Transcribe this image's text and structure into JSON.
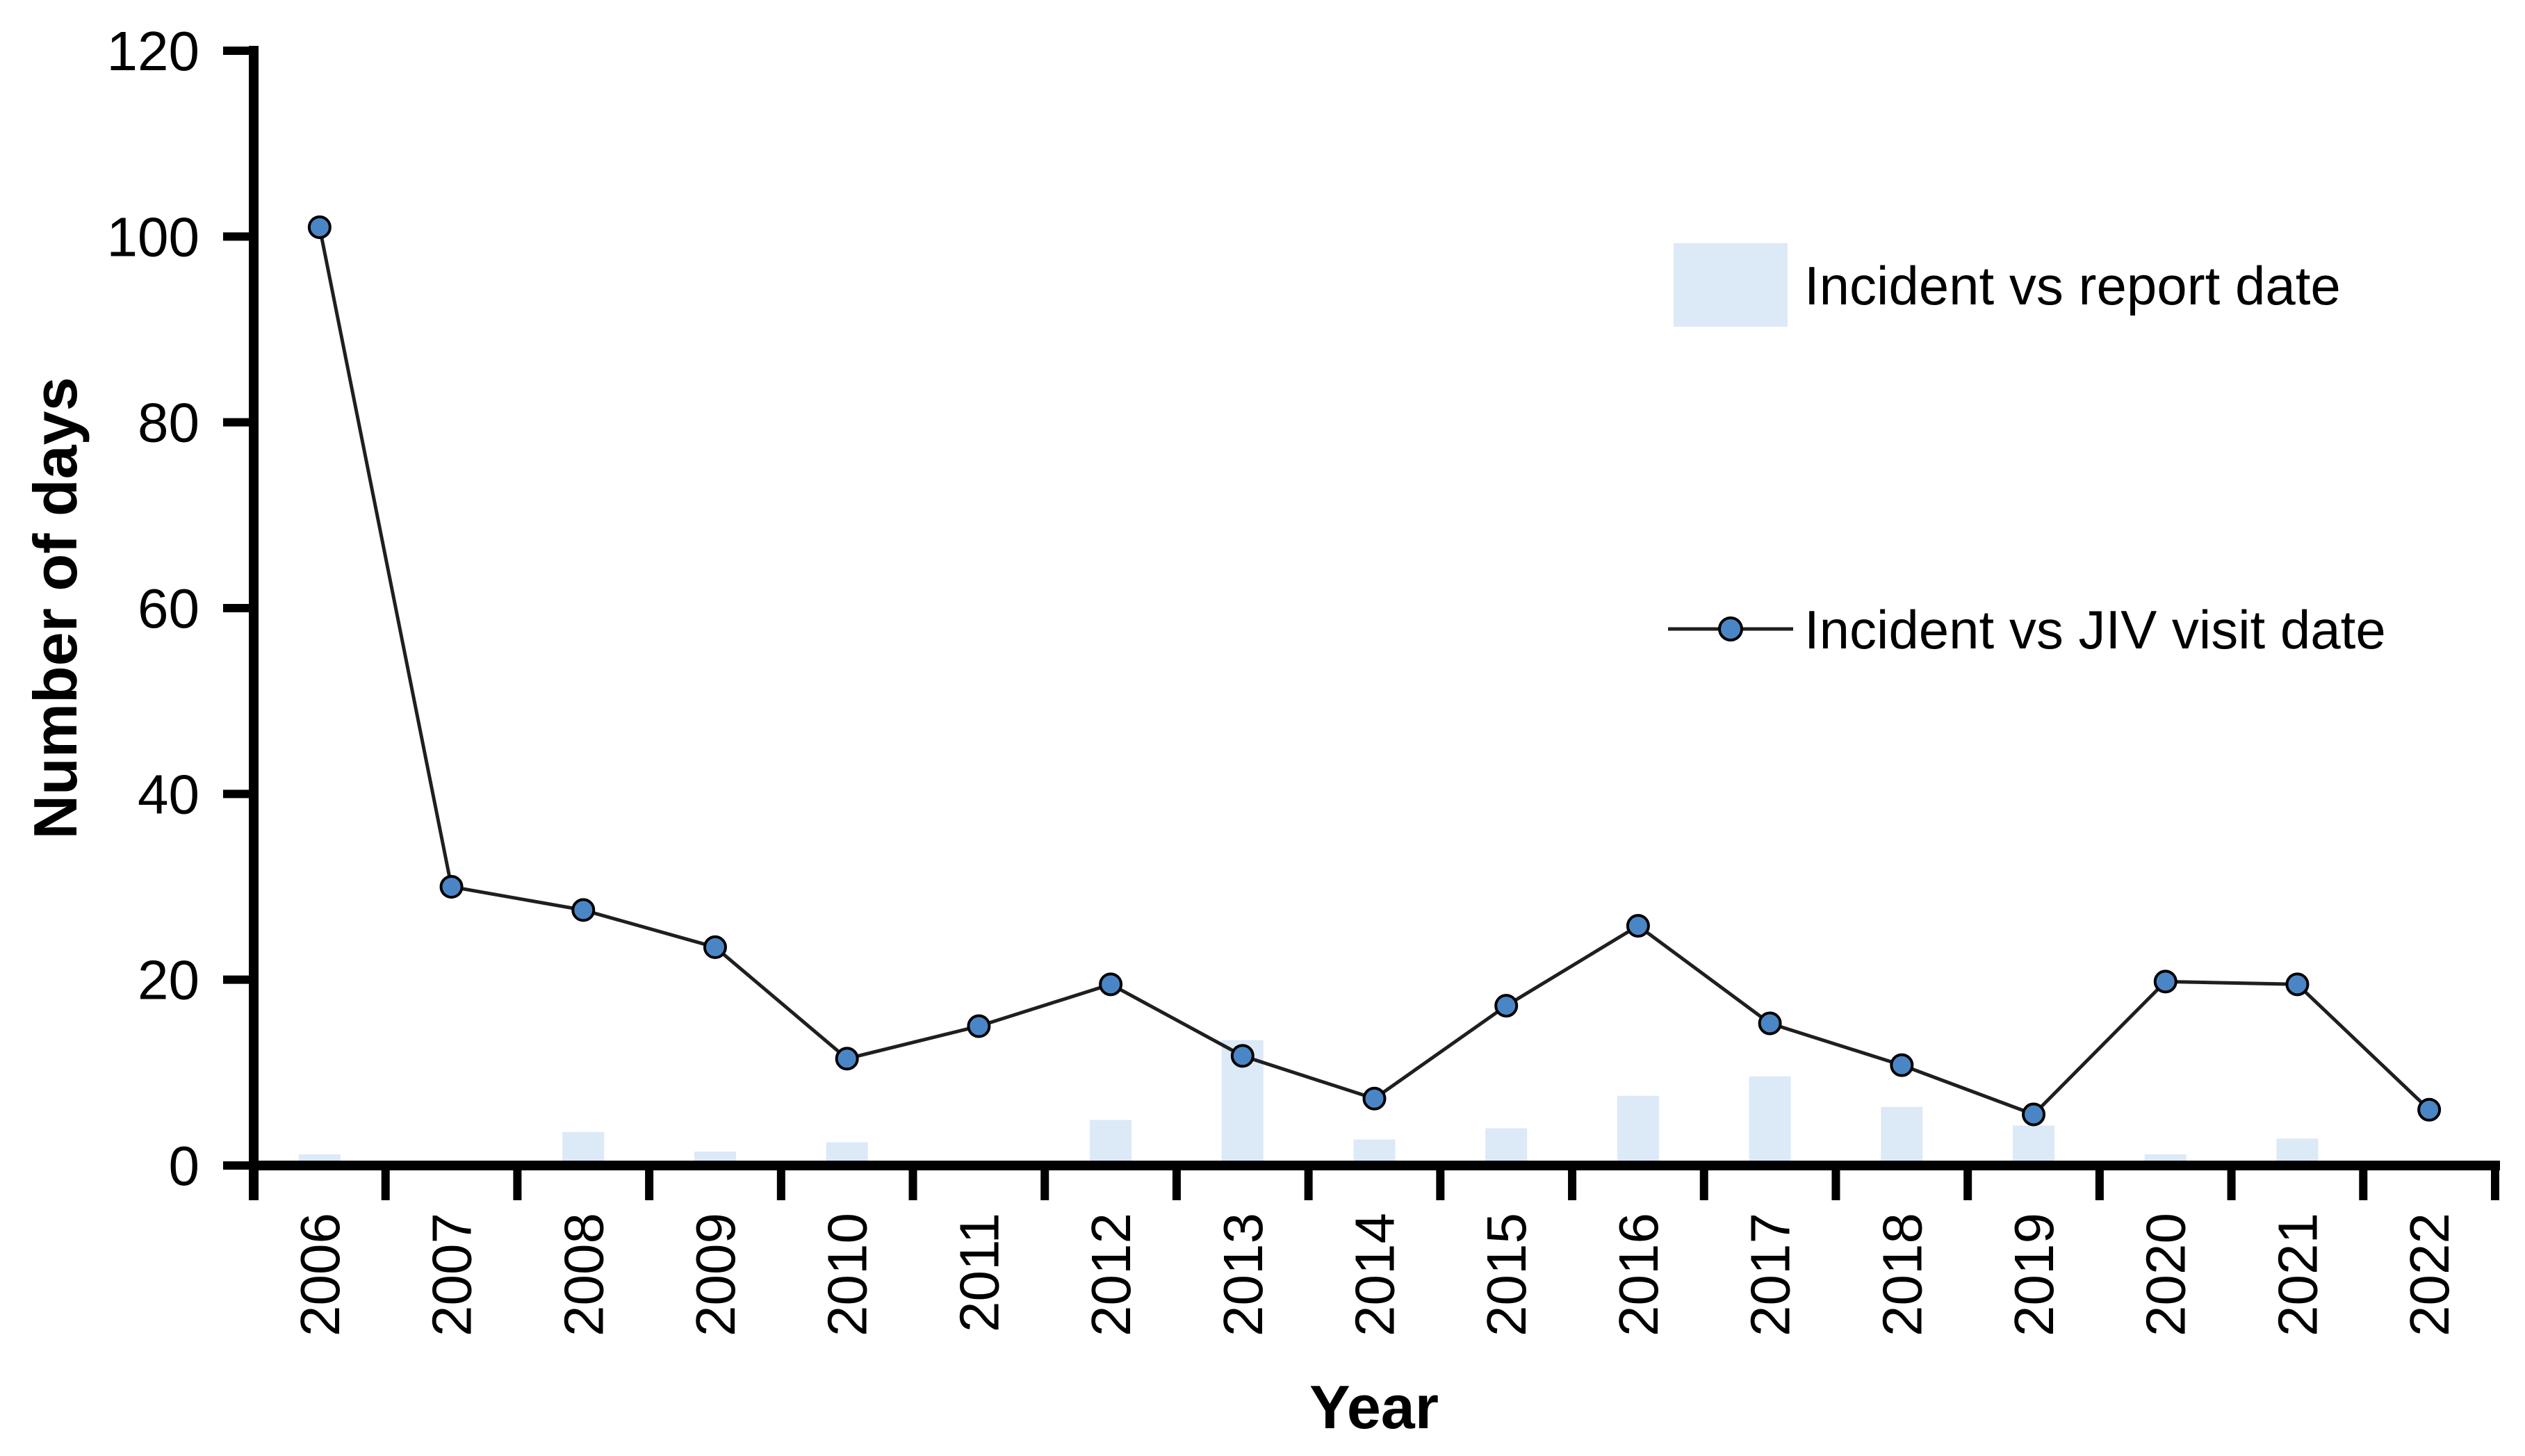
{
  "chart_data": {
    "type": "bar+line",
    "title": "",
    "xlabel": "Year",
    "ylabel": "Number of days",
    "categories": [
      "2006",
      "2007",
      "2008",
      "2009",
      "2010",
      "2011",
      "2012",
      "2013",
      "2014",
      "2015",
      "2016",
      "2017",
      "2018",
      "2019",
      "2020",
      "2021",
      "2022"
    ],
    "series": [
      {
        "name": "Incident vs report date",
        "type": "bar",
        "color": "#dce9f7",
        "values": [
          1.2,
          0.4,
          3.6,
          1.5,
          2.5,
          0.4,
          4.9,
          13.5,
          2.8,
          4.0,
          7.5,
          9.6,
          6.3,
          4.3,
          1.2,
          2.9,
          0.4
        ]
      },
      {
        "name": "Incident vs JIV visit date",
        "type": "line",
        "color": "#1f1f1f",
        "marker_color": "#4a86c6",
        "marker_outline": "#000000",
        "values": [
          101,
          30,
          27.5,
          23.5,
          11.5,
          15,
          19.5,
          11.8,
          7.2,
          17.2,
          25.8,
          15.3,
          10.8,
          5.5,
          19.8,
          19.5,
          6
        ]
      }
    ],
    "y_axis": {
      "min": 0,
      "max": 120,
      "step": 20,
      "tick_labels": [
        "0",
        "20",
        "40",
        "60",
        "80",
        "100",
        "120"
      ]
    },
    "x_axis": {
      "tick_marks": "between-categories",
      "label_rotation": -90
    },
    "legend_position": "top-right",
    "grid": "off",
    "background": "#ffffff",
    "axis_color": "#000000"
  }
}
